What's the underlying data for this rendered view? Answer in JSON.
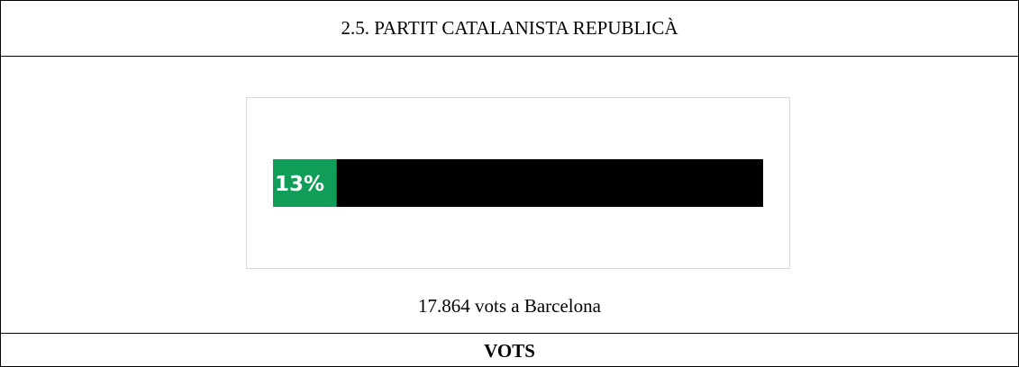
{
  "header": {
    "title": "2.5. PARTIT CATALANISTA REPUBLICÀ"
  },
  "chart_data": {
    "type": "bar",
    "values": [
      13
    ],
    "value_labels": [
      "13%"
    ],
    "xlim": [
      0,
      100
    ],
    "color": "#0f9d58",
    "track_color": "#000000"
  },
  "caption": "17.864 vots a Barcelona",
  "footer": {
    "label": "VOTS"
  }
}
